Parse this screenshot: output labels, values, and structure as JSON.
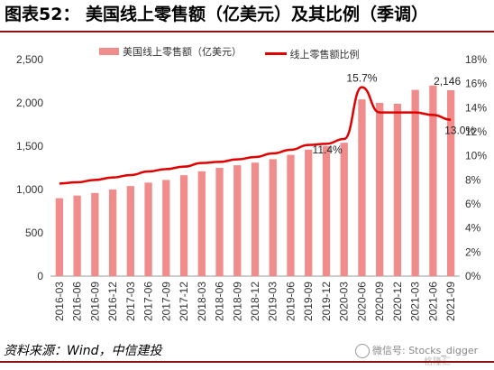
{
  "header": {
    "title": "图表52： 美国线上零售额（亿美元）及其比例（季调）"
  },
  "chart_data": {
    "type": "bar+line",
    "categories": [
      "2016-03",
      "2016-06",
      "2016-09",
      "2016-12",
      "2017-03",
      "2017-06",
      "2017-09",
      "2017-12",
      "2018-03",
      "2018-06",
      "2018-09",
      "2018-12",
      "2019-03",
      "2019-06",
      "2019-09",
      "2019-12",
      "2020-03",
      "2020-06",
      "2020-09",
      "2020-12",
      "2021-03",
      "2021-06",
      "2021-09"
    ],
    "series": [
      {
        "name": "美国线上零售额（亿美元）",
        "type": "bar",
        "axis": "left",
        "color": "#f08c8c",
        "values": [
          900,
          930,
          960,
          1000,
          1040,
          1080,
          1110,
          1165,
          1210,
          1250,
          1280,
          1310,
          1350,
          1400,
          1460,
          1500,
          1540,
          2040,
          2000,
          1990,
          2150,
          2200,
          2146
        ]
      },
      {
        "name": "线上零售额比例",
        "type": "line",
        "axis": "right",
        "color": "#e00000",
        "values": [
          7.7,
          7.8,
          8.0,
          8.2,
          8.4,
          8.7,
          8.9,
          9.1,
          9.4,
          9.5,
          9.7,
          9.9,
          10.2,
          10.5,
          10.9,
          11.0,
          11.4,
          15.7,
          13.6,
          13.6,
          13.6,
          13.4,
          13.0
        ]
      }
    ],
    "y_left": {
      "min": 0,
      "max": 2500,
      "ticks": [
        "0",
        "500",
        "1,000",
        "1,500",
        "2,000",
        "2,500"
      ]
    },
    "y_right": {
      "min": 0,
      "max": 18,
      "ticks": [
        "0%",
        "2%",
        "4%",
        "6%",
        "8%",
        "10%",
        "12%",
        "14%",
        "16%",
        "18%"
      ]
    },
    "annotations": {
      "bar_last": "2,146",
      "line_peak": "15.7%",
      "line_pre": "11.4%",
      "line_last": "13.0%"
    },
    "grid": false,
    "legend": "top"
  },
  "footer": {
    "source": "资料来源：Wind，中信建投",
    "watermark": "微信号: Stocks_digger",
    "brand": "格隆汇"
  }
}
